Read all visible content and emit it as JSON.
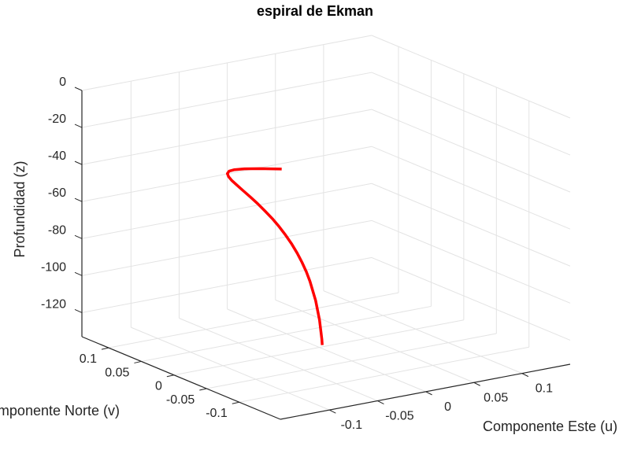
{
  "chart_data": {
    "type": "line3d",
    "title": "espiral de Ekman",
    "xlabel": "Componente Este (u)",
    "ylabel": "Componente Norte (v)",
    "zlabel": "Profundidad (z)",
    "xlim": [
      -0.151,
      0.15
    ],
    "ylim": [
      -0.163,
      0.141
    ],
    "zlim": [
      -133,
      0
    ],
    "xticks": [
      -0.1,
      -0.05,
      0,
      0.05,
      0.1
    ],
    "xtick_labels": [
      "-0.1",
      "-0.05",
      "0",
      "0.05",
      "0.1"
    ],
    "yticks": [
      -0.1,
      -0.05,
      0,
      0.05,
      0.1
    ],
    "ytick_labels": [
      "-0.1",
      "-0.05",
      "0",
      "0.05",
      "0.1"
    ],
    "zticks": [
      0,
      -20,
      -40,
      -60,
      -80,
      -100,
      -120
    ],
    "ztick_labels": [
      "0",
      "-20",
      "-40",
      "-60",
      "-80",
      "-100",
      "-120"
    ],
    "grid": true,
    "colors": {
      "line": "#ff0000",
      "grid": "#e3e3e3",
      "axis": "#262626"
    },
    "series": [
      {
        "u": [
          -0.1432,
          -0.1423,
          -0.1377,
          -0.1303,
          -0.1209,
          -0.1103,
          -0.099,
          -0.0875,
          -0.076,
          -0.0651,
          -0.0547,
          -0.0451,
          -0.0365,
          -0.0286,
          -0.0218,
          -0.0159,
          -0.0108,
          -0.0066,
          -0.0031,
          -0.0003,
          0.0019,
          0.0047,
          0.006,
          0.0062,
          0.0061
        ],
        "v": [
          -0.1536,
          -0.1187,
          -0.0883,
          -0.0622,
          -0.0401,
          -0.0218,
          -0.007,
          0.0048,
          0.0138,
          0.0205,
          0.0251,
          0.028,
          0.0295,
          0.0298,
          0.0293,
          0.028,
          0.0263,
          0.0242,
          0.0219,
          0.0195,
          0.0171,
          0.0126,
          0.0086,
          0.0053,
          0.0045
        ],
        "z": [
          0,
          -5,
          -10,
          -15,
          -20,
          -25,
          -30,
          -35,
          -40,
          -45,
          -50,
          -55,
          -60,
          -65,
          -70,
          -75,
          -80,
          -85,
          -90,
          -95,
          -100,
          -110,
          -120,
          -130,
          -133
        ]
      }
    ]
  }
}
